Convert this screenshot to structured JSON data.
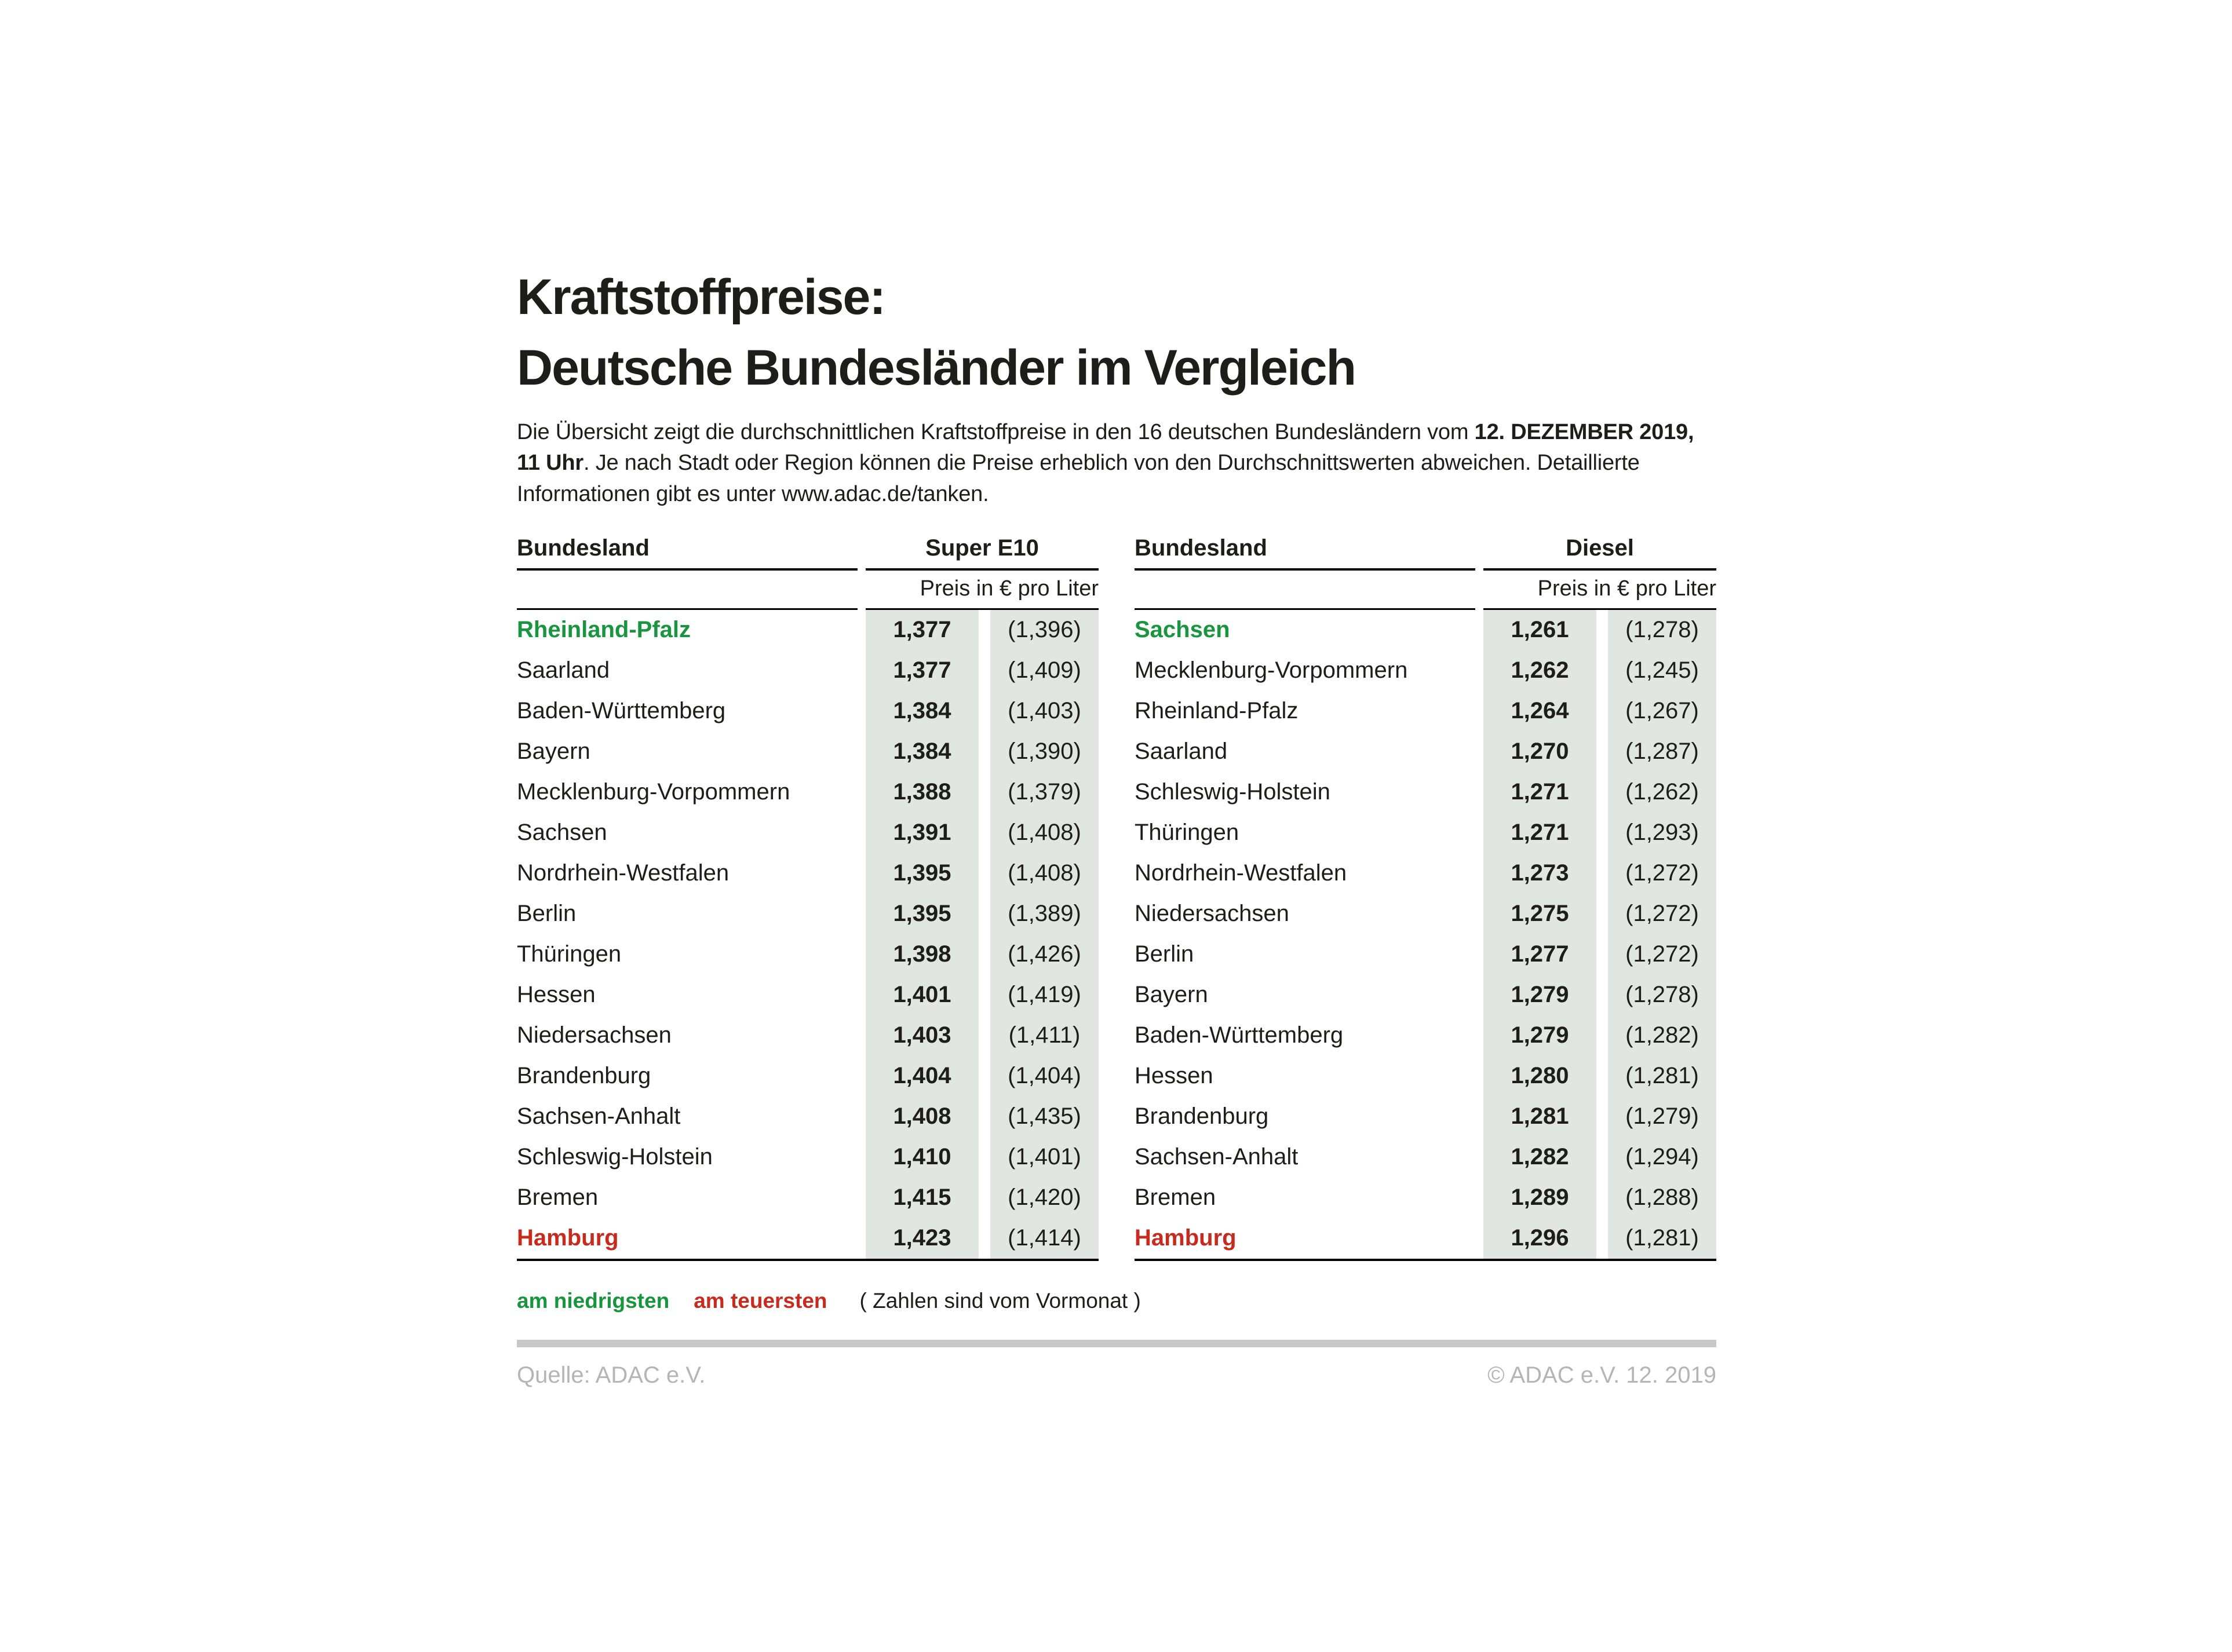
{
  "title": {
    "line1": "Kraftstoffpreise:",
    "line2": "Deutsche Bundesländer im Vergleich"
  },
  "intro": {
    "before_bold": "Die Übersicht zeigt die durchschnittlichen Kraftstoffpreise in den 16 deutschen Bundesländern vom ",
    "bold": "12. DEZEMBER 2019, 11 Uhr",
    "after_bold": ". Je nach Stadt oder Region können die Preise erheblich von den Durchschnittswerten abweichen. Detaillierte Informationen gibt es unter www.adac.de/tanken."
  },
  "tables": [
    {
      "bundesland_header": "Bundesland",
      "fuel_header": "Super E10",
      "price_unit_header": "Preis in € pro Liter",
      "rows": [
        {
          "state": "Rheinland-Pfalz",
          "price": "1,377",
          "prev": "(1,396)",
          "highlight": "lowest"
        },
        {
          "state": "Saarland",
          "price": "1,377",
          "prev": "(1,409)"
        },
        {
          "state": "Baden-Württemberg",
          "price": "1,384",
          "prev": "(1,403)"
        },
        {
          "state": "Bayern",
          "price": "1,384",
          "prev": "(1,390)"
        },
        {
          "state": "Mecklenburg-Vorpommern",
          "price": "1,388",
          "prev": "(1,379)"
        },
        {
          "state": "Sachsen",
          "price": "1,391",
          "prev": "(1,408)"
        },
        {
          "state": "Nordrhein-Westfalen",
          "price": "1,395",
          "prev": "(1,408)"
        },
        {
          "state": "Berlin",
          "price": "1,395",
          "prev": "(1,389)"
        },
        {
          "state": "Thüringen",
          "price": "1,398",
          "prev": "(1,426)"
        },
        {
          "state": "Hessen",
          "price": "1,401",
          "prev": "(1,419)"
        },
        {
          "state": "Niedersachsen",
          "price": "1,403",
          "prev": "(1,411)"
        },
        {
          "state": "Brandenburg",
          "price": "1,404",
          "prev": "(1,404)"
        },
        {
          "state": "Sachsen-Anhalt",
          "price": "1,408",
          "prev": "(1,435)"
        },
        {
          "state": "Schleswig-Holstein",
          "price": "1,410",
          "prev": "(1,401)"
        },
        {
          "state": "Bremen",
          "price": "1,415",
          "prev": "(1,420)"
        },
        {
          "state": "Hamburg",
          "price": "1,423",
          "prev": "(1,414)",
          "highlight": "highest"
        }
      ]
    },
    {
      "bundesland_header": "Bundesland",
      "fuel_header": "Diesel",
      "price_unit_header": "Preis in € pro Liter",
      "rows": [
        {
          "state": "Sachsen",
          "price": "1,261",
          "prev": "(1,278)",
          "highlight": "lowest"
        },
        {
          "state": "Mecklenburg-Vorpommern",
          "price": "1,262",
          "prev": "(1,245)"
        },
        {
          "state": "Rheinland-Pfalz",
          "price": "1,264",
          "prev": "(1,267)"
        },
        {
          "state": "Saarland",
          "price": "1,270",
          "prev": "(1,287)"
        },
        {
          "state": "Schleswig-Holstein",
          "price": "1,271",
          "prev": "(1,262)"
        },
        {
          "state": "Thüringen",
          "price": "1,271",
          "prev": "(1,293)"
        },
        {
          "state": "Nordrhein-Westfalen",
          "price": "1,273",
          "prev": "(1,272)"
        },
        {
          "state": "Niedersachsen",
          "price": "1,275",
          "prev": "(1,272)"
        },
        {
          "state": "Berlin",
          "price": "1,277",
          "prev": "(1,272)"
        },
        {
          "state": "Bayern",
          "price": "1,279",
          "prev": "(1,278)"
        },
        {
          "state": "Baden-Württemberg",
          "price": "1,279",
          "prev": "(1,282)"
        },
        {
          "state": "Hessen",
          "price": "1,280",
          "prev": "(1,281)"
        },
        {
          "state": "Brandenburg",
          "price": "1,281",
          "prev": "(1,279)"
        },
        {
          "state": "Sachsen-Anhalt",
          "price": "1,282",
          "prev": "(1,294)"
        },
        {
          "state": "Bremen",
          "price": "1,289",
          "prev": "(1,288)"
        },
        {
          "state": "Hamburg",
          "price": "1,296",
          "prev": "(1,281)",
          "highlight": "highest"
        }
      ]
    }
  ],
  "legend": {
    "lowest": "am niedrigsten",
    "highest": "am teuersten",
    "note": "( Zahlen sind vom Vormonat )"
  },
  "footer": {
    "source": "Quelle: ADAC e.V.",
    "copyright": "© ADAC e.V. 12. 2019"
  },
  "colors": {
    "lowest": "#19943f",
    "highest": "#c62b1e",
    "cellbg": "#e2e6e3",
    "divider": "#c8c8c8",
    "footer": "#b5b5b5"
  },
  "chart_data": [
    {
      "type": "table",
      "title": "Super E10 — Preis in € pro Liter (12. Dezember 2019, 11 Uhr)",
      "columns": [
        "Bundesland",
        "Preis in € pro Liter",
        "Vormonat"
      ],
      "rows": [
        [
          "Rheinland-Pfalz",
          1.377,
          1.396
        ],
        [
          "Saarland",
          1.377,
          1.409
        ],
        [
          "Baden-Württemberg",
          1.384,
          1.403
        ],
        [
          "Bayern",
          1.384,
          1.39
        ],
        [
          "Mecklenburg-Vorpommern",
          1.388,
          1.379
        ],
        [
          "Sachsen",
          1.391,
          1.408
        ],
        [
          "Nordrhein-Westfalen",
          1.395,
          1.408
        ],
        [
          "Berlin",
          1.395,
          1.389
        ],
        [
          "Thüringen",
          1.398,
          1.426
        ],
        [
          "Hessen",
          1.401,
          1.419
        ],
        [
          "Niedersachsen",
          1.403,
          1.411
        ],
        [
          "Brandenburg",
          1.404,
          1.404
        ],
        [
          "Sachsen-Anhalt",
          1.408,
          1.435
        ],
        [
          "Schleswig-Holstein",
          1.41,
          1.401
        ],
        [
          "Bremen",
          1.415,
          1.42
        ],
        [
          "Hamburg",
          1.423,
          1.414
        ]
      ],
      "annotations": {
        "lowest": "Rheinland-Pfalz",
        "highest": "Hamburg"
      }
    },
    {
      "type": "table",
      "title": "Diesel — Preis in € pro Liter (12. Dezember 2019, 11 Uhr)",
      "columns": [
        "Bundesland",
        "Preis in € pro Liter",
        "Vormonat"
      ],
      "rows": [
        [
          "Sachsen",
          1.261,
          1.278
        ],
        [
          "Mecklenburg-Vorpommern",
          1.262,
          1.245
        ],
        [
          "Rheinland-Pfalz",
          1.264,
          1.267
        ],
        [
          "Saarland",
          1.27,
          1.287
        ],
        [
          "Schleswig-Holstein",
          1.271,
          1.262
        ],
        [
          "Thüringen",
          1.271,
          1.293
        ],
        [
          "Nordrhein-Westfalen",
          1.273,
          1.272
        ],
        [
          "Niedersachsen",
          1.275,
          1.272
        ],
        [
          "Berlin",
          1.277,
          1.272
        ],
        [
          "Bayern",
          1.279,
          1.278
        ],
        [
          "Baden-Württemberg",
          1.279,
          1.282
        ],
        [
          "Hessen",
          1.28,
          1.281
        ],
        [
          "Brandenburg",
          1.281,
          1.279
        ],
        [
          "Sachsen-Anhalt",
          1.282,
          1.294
        ],
        [
          "Bremen",
          1.289,
          1.288
        ],
        [
          "Hamburg",
          1.296,
          1.281
        ]
      ],
      "annotations": {
        "lowest": "Sachsen",
        "highest": "Hamburg"
      }
    }
  ]
}
